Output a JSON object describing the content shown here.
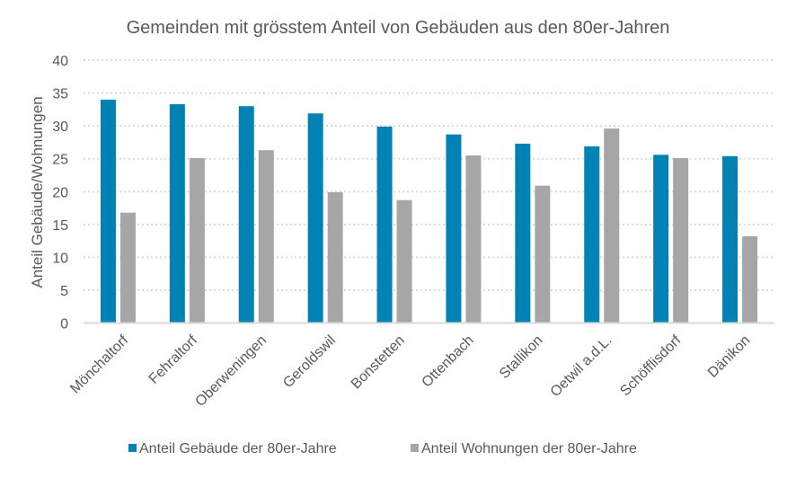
{
  "chart_data": {
    "type": "bar",
    "title": "Gemeinden mit grösstem Anteil von Gebäuden aus den 80er-Jahren",
    "xlabel": "",
    "ylabel": "Anteil Gebäude/Wohnungen",
    "ylim": [
      0,
      40
    ],
    "yticks": [
      0,
      5,
      10,
      15,
      20,
      25,
      30,
      35,
      40
    ],
    "grid": true,
    "legend_position": "bottom",
    "categories": [
      "Mönchaltorf",
      "Fehraltorf",
      "Oberweningen",
      "Geroldswil",
      "Bonstetten",
      "Ottenbach",
      "Stallikon",
      "Oetwil a.d.L.",
      "Schöfflisdorf",
      "Dänikon"
    ],
    "series": [
      {
        "name": "Anteil Gebäude der 80er-Jahre",
        "color": "#0082b4",
        "values": [
          34.0,
          33.3,
          33.0,
          31.9,
          29.9,
          28.7,
          27.3,
          26.9,
          25.6,
          25.4
        ]
      },
      {
        "name": "Anteil Wohnungen der 80er-Jahre",
        "color": "#a6a6a6",
        "values": [
          16.8,
          25.1,
          26.3,
          19.9,
          18.7,
          25.5,
          20.9,
          29.6,
          25.1,
          13.2
        ]
      }
    ]
  }
}
